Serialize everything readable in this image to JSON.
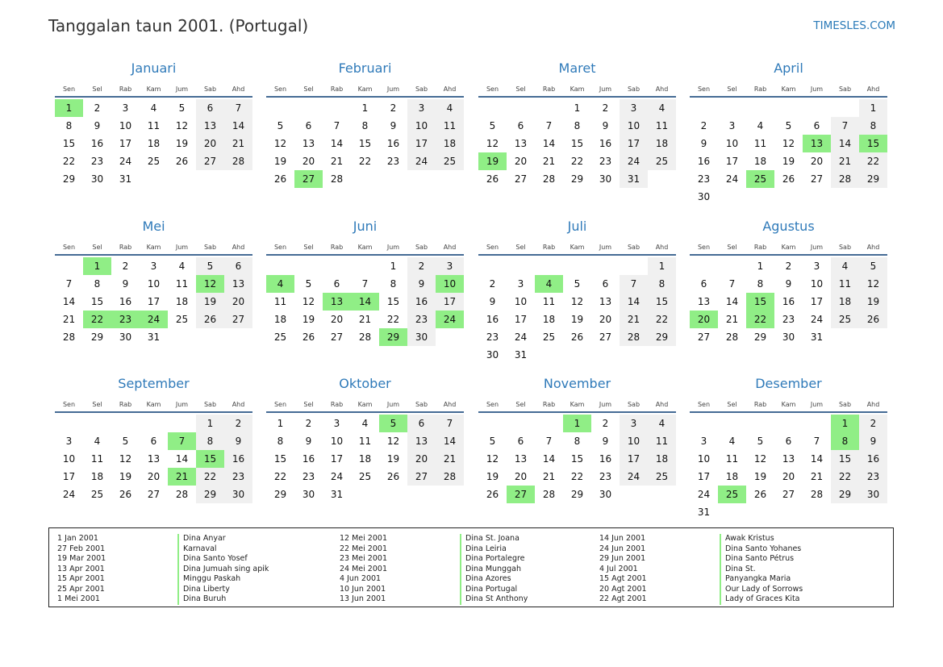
{
  "header": {
    "title": "Tanggalan taun 2001. (Portugal)",
    "site": "TIMESLES.COM"
  },
  "weekdays": [
    "Sen",
    "Sel",
    "Rab",
    "Kam",
    "Jum",
    "Sab",
    "Ahd"
  ],
  "months": [
    {
      "name": "Januari",
      "days": 31,
      "start": 0,
      "holidays": [
        1
      ]
    },
    {
      "name": "Februari",
      "days": 28,
      "start": 3,
      "holidays": [
        27
      ]
    },
    {
      "name": "Maret",
      "days": 31,
      "start": 3,
      "holidays": [
        19
      ]
    },
    {
      "name": "April",
      "days": 30,
      "start": 6,
      "holidays": [
        13,
        15,
        25
      ]
    },
    {
      "name": "Mei",
      "days": 31,
      "start": 1,
      "holidays": [
        1,
        12,
        22,
        23,
        24
      ]
    },
    {
      "name": "Juni",
      "days": 30,
      "start": 4,
      "holidays": [
        4,
        10,
        13,
        14,
        24,
        29
      ]
    },
    {
      "name": "Juli",
      "days": 31,
      "start": 6,
      "holidays": [
        4
      ]
    },
    {
      "name": "Agustus",
      "days": 31,
      "start": 2,
      "holidays": [
        15,
        20,
        22
      ]
    },
    {
      "name": "September",
      "days": 30,
      "start": 5,
      "holidays": [
        7,
        15,
        21
      ]
    },
    {
      "name": "Oktober",
      "days": 31,
      "start": 0,
      "holidays": [
        5
      ]
    },
    {
      "name": "November",
      "days": 30,
      "start": 3,
      "holidays": [
        1,
        27
      ]
    },
    {
      "name": "Desember",
      "days": 31,
      "start": 5,
      "holidays": [
        1,
        8,
        25
      ]
    }
  ],
  "holiday_list": [
    {
      "date": "1 Jan 2001",
      "name": "Dina Anyar"
    },
    {
      "date": "27 Feb 2001",
      "name": "Karnaval"
    },
    {
      "date": "19 Mar 2001",
      "name": "Dina Santo Yosef"
    },
    {
      "date": "13 Apr 2001",
      "name": "Dina Jumuah sing apik"
    },
    {
      "date": "15 Apr 2001",
      "name": "Minggu Paskah"
    },
    {
      "date": "25 Apr 2001",
      "name": "Dina Liberty"
    },
    {
      "date": "1 Mei 2001",
      "name": "Dina Buruh"
    },
    {
      "date": "12 Mei 2001",
      "name": "Dina St. Joana"
    },
    {
      "date": "22 Mei 2001",
      "name": "Dina Leiria"
    },
    {
      "date": "23 Mei 2001",
      "name": "Dina Portalegre"
    },
    {
      "date": "24 Mei 2001",
      "name": "Dina Munggah"
    },
    {
      "date": "4 Jun 2001",
      "name": "Dina Azores"
    },
    {
      "date": "10 Jun 2001",
      "name": "Dina Portugal"
    },
    {
      "date": "13 Jun 2001",
      "name": "Dina St Anthony"
    },
    {
      "date": "14 Jun 2001",
      "name": "Awak Kristus"
    },
    {
      "date": "24 Jun 2001",
      "name": "Dina Santo Yohanes"
    },
    {
      "date": "29 Jun 2001",
      "name": "Dina Santo Pétrus"
    },
    {
      "date": "4 Jul 2001",
      "name": "Dina St."
    },
    {
      "date": "15 Agt 2001",
      "name": "Panyangka Maria"
    },
    {
      "date": "20 Agt 2001",
      "name": "Our Lady of Sorrows"
    },
    {
      "date": "22 Agt 2001",
      "name": "Lady of Graces Kita"
    }
  ]
}
